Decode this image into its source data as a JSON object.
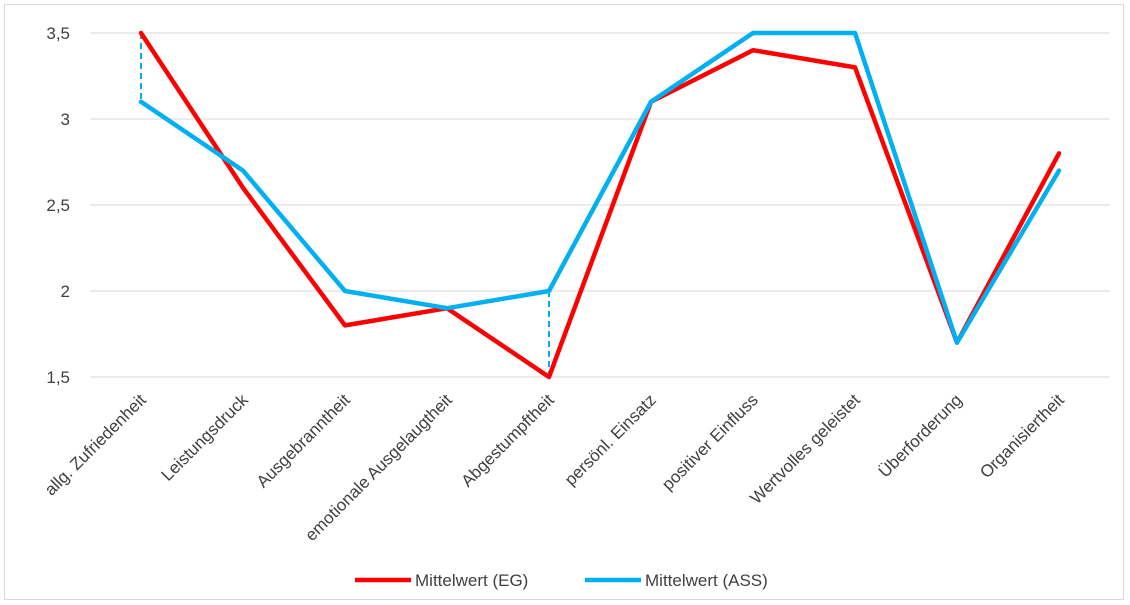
{
  "chart_data": {
    "type": "line",
    "categories": [
      "allg. Zufriedenheit",
      "Leistungsdruck",
      "Ausgebranntheit",
      "emotionale Ausgelaugtheit",
      "Abgestumpftheit",
      "persönl. Einsatz",
      "positiver Einfluss",
      "Wertvolles geleistet",
      "Überforderung",
      "Organisiertheit"
    ],
    "series": [
      {
        "name": "Mittelwert (EG)",
        "color": "#ff0000",
        "values": [
          3.5,
          2.6,
          1.8,
          1.9,
          1.5,
          3.1,
          3.4,
          3.3,
          1.7,
          2.8
        ]
      },
      {
        "name": "Mittelwert (ASS)",
        "color": "#00b0f0",
        "values": [
          3.1,
          2.7,
          2.0,
          1.9,
          2.0,
          3.1,
          3.5,
          3.5,
          1.7,
          2.7
        ]
      }
    ],
    "ylim": [
      1.5,
      3.5
    ],
    "yticks": [
      "1,5",
      "2",
      "2,5",
      "3",
      "3,5"
    ],
    "ytick_values": [
      1.5,
      2.0,
      2.5,
      3.0,
      3.5
    ],
    "grid": true,
    "legend_position": "bottom",
    "highlight_dropline_indices": [
      0,
      4
    ],
    "title": "",
    "xlabel": "",
    "ylabel": ""
  }
}
